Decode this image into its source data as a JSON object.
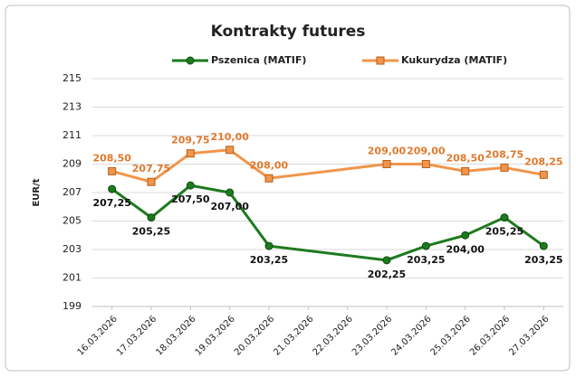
{
  "chart_data": {
    "type": "line",
    "title": "Kontrakty futures",
    "y_label": "EUR/t",
    "x": [
      "16.03.2026",
      "17.03.2026",
      "18.03.2026",
      "19.03.2026",
      "20.03.2026",
      "23.03.2026",
      "24.03.2026",
      "25.03.2026",
      "26.03.2026",
      "27.03.2026"
    ],
    "xlim": [
      "16.03.2026",
      "27.03.2026"
    ],
    "xticks": [
      "16.03.2026",
      "17.03.2026",
      "18.03.2026",
      "19.03.2026",
      "20.03.2026",
      "21.03.2026",
      "22.03.2026",
      "23.03.2026",
      "24.03.2026",
      "25.03.2026",
      "26.03.2026",
      "27.03.2026"
    ],
    "ylim": [
      199,
      215
    ],
    "yticks": [
      199,
      201,
      203,
      205,
      207,
      209,
      211,
      213,
      215
    ],
    "grid": true,
    "series": [
      {
        "name": "Pszenica (MATIF)",
        "color": "#1e7a1e",
        "marker": "circle",
        "values": [
          207.25,
          205.25,
          207.5,
          207,
          203.25,
          202.25,
          203.25,
          204,
          205.25,
          203.25
        ],
        "value_labels": [
          "207,25",
          "205,25",
          "207,50",
          "207,00",
          "203,25",
          "202,25",
          "203,25",
          "204,00",
          "205,25",
          "203,25"
        ]
      },
      {
        "name": "Kukurydza (MATIF)",
        "color": "#f0954a",
        "marker": "square",
        "values": [
          208.5,
          207.75,
          209.75,
          210,
          208,
          209,
          209,
          208.5,
          208.75,
          208.25
        ],
        "value_labels": [
          "208,50",
          "207,75",
          "209,75",
          "210,00",
          "208,00",
          "209,00",
          "209,00",
          "208,50",
          "208,75",
          "208,25"
        ]
      }
    ]
  }
}
